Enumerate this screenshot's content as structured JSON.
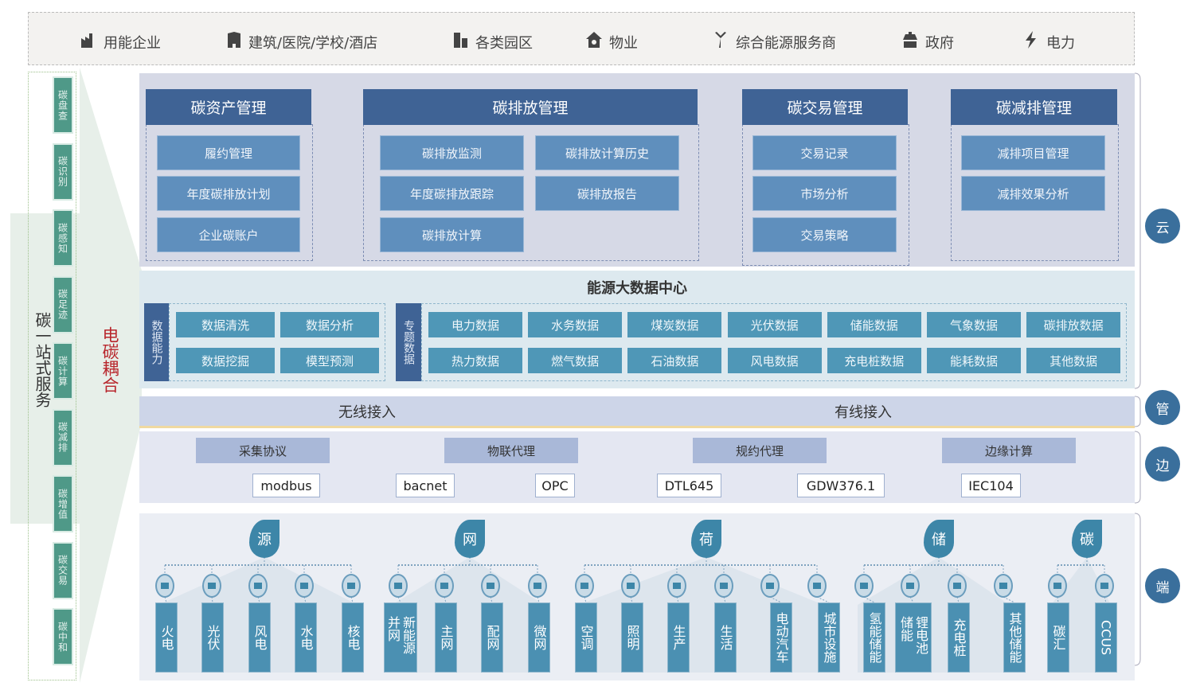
{
  "top_bar": [
    {
      "label": "用能企业",
      "icon": "factory-icon"
    },
    {
      "label": "建筑/医院/学校/酒店",
      "icon": "building-icon"
    },
    {
      "label": "各类园区",
      "icon": "park-icon"
    },
    {
      "label": "物业",
      "icon": "house-icon"
    },
    {
      "label": "综合能源服务商",
      "icon": "energy-provider-icon"
    },
    {
      "label": "政府",
      "icon": "government-icon"
    },
    {
      "label": "电力",
      "icon": "lightning-icon"
    }
  ],
  "left": {
    "title": "碳一站式服务",
    "coupling": "电碳耦合",
    "services": [
      "碳盘查",
      "碳识别",
      "碳感知",
      "碳足迹",
      "碳计算",
      "碳减排",
      "碳增值",
      "碳交易",
      "碳中和"
    ]
  },
  "cloud": {
    "groups": [
      {
        "title": "碳资产管理",
        "items": [
          "履约管理",
          "年度碳排放计划",
          "企业碳账户"
        ]
      },
      {
        "title": "碳排放管理",
        "items": [
          "碳排放监测",
          "碳排放计算历史",
          "年度碳排放跟踪",
          "碳排放报告",
          "碳排放计算"
        ]
      },
      {
        "title": "碳交易管理",
        "items": [
          "交易记录",
          "市场分析",
          "交易策略"
        ]
      },
      {
        "title": "碳减排管理",
        "items": [
          "减排项目管理",
          "减排效果分析"
        ]
      }
    ]
  },
  "data_center": {
    "title": "能源大数据中心",
    "capability_label": "数据能力",
    "capabilities": [
      "数据清洗",
      "数据分析",
      "数据挖掘",
      "模型预测"
    ],
    "topic_label": "专题数据",
    "topics": [
      "电力数据",
      "水务数据",
      "煤炭数据",
      "光伏数据",
      "储能数据",
      "气象数据",
      "碳排放数据",
      "热力数据",
      "燃气数据",
      "石油数据",
      "风电数据",
      "充电桩数据",
      "能耗数据",
      "其他数据"
    ]
  },
  "access": {
    "wireless": "无线接入",
    "wired": "有线接入"
  },
  "edge": {
    "headers": [
      "采集协议",
      "物联代理",
      "规约代理",
      "边缘计算"
    ],
    "protocols": [
      "modbus",
      "bacnet",
      "OPC",
      "DTL645",
      "GDW376.1",
      "IEC104"
    ]
  },
  "terminal": {
    "categories": [
      "源",
      "网",
      "荷",
      "储",
      "碳"
    ],
    "leaves": [
      "火电",
      "光伏",
      "风电",
      "水电",
      "核电",
      "新能源并网",
      "主网",
      "配网",
      "微网",
      "空调",
      "照明",
      "生产",
      "生活",
      "电动汽车",
      "城市设施",
      "氢能储能",
      "锂电池储能",
      "充电桩",
      "其他储能",
      "碳汇",
      "CCUS"
    ]
  },
  "layers": [
    "云",
    "管",
    "边",
    "端"
  ],
  "colors": {
    "dark_blue": "#3f6395",
    "button_blue": "#5f8fbd",
    "teal": "#4b90b2",
    "green": "#4f9988",
    "red": "#b8262c",
    "cloud_bg": "#d6d9e6",
    "data_bg": "#dde9ef"
  }
}
